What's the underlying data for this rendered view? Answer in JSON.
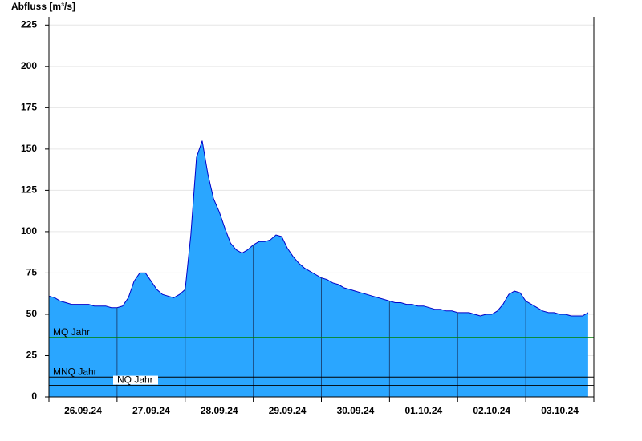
{
  "chart_data": {
    "type": "area",
    "title": "Abfluss [m³/s]",
    "categories": [
      "26.09.24",
      "27.09.24",
      "28.09.24",
      "29.09.24",
      "30.09.24",
      "01.10.24",
      "02.10.24",
      "03.10.24"
    ],
    "values": [
      [
        61,
        60,
        58,
        57,
        56,
        56,
        56,
        56,
        55,
        55,
        55,
        54
      ],
      [
        54,
        55,
        60,
        70,
        75,
        75,
        70,
        65,
        62,
        61,
        60,
        62
      ],
      [
        65,
        98,
        145,
        155,
        135,
        120,
        112,
        102,
        93,
        89,
        87,
        89
      ],
      [
        92,
        94,
        94,
        95,
        98,
        97,
        90,
        85,
        81,
        78,
        76,
        74
      ],
      [
        72,
        71,
        69,
        68,
        66,
        65,
        64,
        63,
        62,
        61,
        60,
        59
      ],
      [
        58,
        57,
        57,
        56,
        56,
        55,
        55,
        54,
        53,
        53,
        52,
        52
      ],
      [
        51,
        51,
        51,
        50,
        49,
        50,
        50,
        52,
        56,
        62,
        64,
        63
      ],
      [
        58,
        56,
        54,
        52,
        51,
        51,
        50,
        50,
        49,
        49,
        49,
        51
      ]
    ],
    "color": "#2aa6ff",
    "line_color": "#0000c8",
    "ylim": [
      0,
      230
    ],
    "yticks": [
      0,
      25,
      50,
      75,
      100,
      125,
      150,
      175,
      200,
      225
    ],
    "grid": true,
    "reference_lines": [
      {
        "name": "MQ Jahr",
        "value": 36,
        "color": "#008000"
      },
      {
        "name": "MNQ Jahr",
        "value": 12,
        "color": "#000000"
      },
      {
        "name": "NQ Jahr",
        "value": 7,
        "color": "#000000"
      }
    ]
  }
}
